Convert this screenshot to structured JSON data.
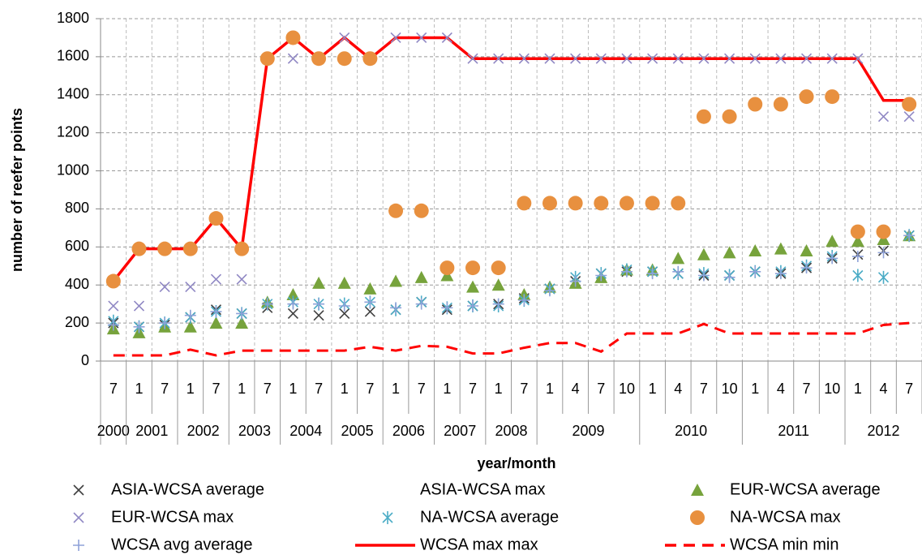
{
  "chart_data": {
    "type": "line",
    "x_label": "year/month",
    "y_label": "number of reefer points",
    "categories": [
      "7",
      "1",
      "7",
      "1",
      "7",
      "1",
      "7",
      "1",
      "7",
      "1",
      "7",
      "1",
      "7",
      "1",
      "7",
      "1",
      "7",
      "1",
      "4",
      "7",
      "10",
      "1",
      "4",
      "7",
      "10",
      "1",
      "4",
      "7",
      "10",
      "1",
      "4",
      "7"
    ],
    "years": [
      "2000",
      "2001",
      "2001",
      "2002",
      "2002",
      "2003",
      "2003",
      "2004",
      "2004",
      "2005",
      "2005",
      "2006",
      "2006",
      "2007",
      "2007",
      "2008",
      "2008",
      "2009",
      "2009",
      "2009",
      "2009",
      "2010",
      "2010",
      "2010",
      "2010",
      "2011",
      "2011",
      "2011",
      "2011",
      "2012",
      "2012",
      "2012"
    ],
    "ylim": [
      0,
      1800
    ],
    "yticks": [
      0,
      200,
      400,
      600,
      800,
      1000,
      1200,
      1400,
      1600,
      1800
    ],
    "grid": true,
    "series": [
      {
        "name": "ASIA-WCSA average",
        "color": "#404040",
        "marker": "x",
        "values": [
          200,
          180,
          190,
          230,
          270,
          250,
          280,
          250,
          240,
          250,
          260,
          270,
          310,
          270,
          290,
          300,
          330,
          380,
          420,
          460,
          470,
          470,
          460,
          450,
          450,
          470,
          460,
          490,
          540,
          560,
          580,
          660
        ]
      },
      {
        "name": "ASIA-WCSA max",
        "color": "#ffffff",
        "marker": "none",
        "values": [
          null,
          null,
          null,
          null,
          null,
          null,
          null,
          null,
          null,
          null,
          null,
          null,
          null,
          null,
          null,
          null,
          null,
          null,
          null,
          null,
          null,
          null,
          null,
          null,
          null,
          null,
          null,
          null,
          null,
          null,
          null,
          null
        ]
      },
      {
        "name": "EUR-WCSA average",
        "color": "#77a33c",
        "marker": "triangle",
        "values": [
          170,
          150,
          180,
          180,
          200,
          200,
          310,
          350,
          410,
          410,
          380,
          420,
          440,
          450,
          390,
          400,
          350,
          390,
          410,
          440,
          480,
          480,
          540,
          560,
          570,
          580,
          590,
          580,
          630,
          630,
          640,
          660
        ]
      },
      {
        "name": "EUR-WCSA max",
        "color": "#9088c4",
        "marker": "x",
        "values": [
          290,
          290,
          390,
          390,
          430,
          430,
          1590,
          1590,
          1590,
          1700,
          1590,
          1700,
          1700,
          1700,
          1590,
          1590,
          1590,
          1590,
          1590,
          1590,
          1590,
          1590,
          1590,
          1590,
          1590,
          1590,
          1590,
          1590,
          1590,
          1590,
          1285,
          1285
        ]
      },
      {
        "name": "NA-WCSA average",
        "color": "#4bacc6",
        "marker": "asterisk",
        "values": [
          210,
          180,
          200,
          230,
          260,
          250,
          300,
          310,
          300,
          300,
          310,
          270,
          310,
          280,
          290,
          290,
          320,
          380,
          440,
          460,
          480,
          470,
          460,
          460,
          450,
          470,
          470,
          500,
          550,
          450,
          440,
          660
        ]
      },
      {
        "name": "NA-WCSA max",
        "color": "#e8903f",
        "marker": "circle",
        "values": [
          420,
          590,
          590,
          590,
          750,
          590,
          1590,
          1700,
          1590,
          1590,
          1590,
          790,
          790,
          490,
          490,
          490,
          830,
          830,
          830,
          830,
          830,
          830,
          830,
          1285,
          1285,
          1350,
          1350,
          1390,
          1390,
          680,
          680,
          1350
        ]
      },
      {
        "name": "WCSA avg average",
        "color": "#8fa2d8",
        "marker": "plus",
        "values": [
          190,
          180,
          200,
          240,
          260,
          250,
          300,
          300,
          300,
          290,
          310,
          280,
          300,
          280,
          290,
          300,
          320,
          370,
          420,
          450,
          470,
          460,
          470,
          450,
          440,
          470,
          460,
          490,
          540,
          550,
          570,
          660
        ]
      },
      {
        "name": "WCSA max max",
        "color": "#ff0000",
        "marker": "line",
        "values": [
          420,
          590,
          590,
          590,
          750,
          590,
          1590,
          1700,
          1590,
          1700,
          1590,
          1700,
          1700,
          1700,
          1590,
          1590,
          1590,
          1590,
          1590,
          1590,
          1590,
          1590,
          1590,
          1590,
          1590,
          1590,
          1590,
          1590,
          1590,
          1590,
          1370,
          1370
        ]
      },
      {
        "name": "WCSA min min",
        "color": "#ff0000",
        "marker": "dashed",
        "values": [
          30,
          30,
          30,
          60,
          30,
          55,
          55,
          55,
          55,
          55,
          75,
          55,
          80,
          75,
          40,
          40,
          70,
          95,
          95,
          50,
          145,
          145,
          145,
          195,
          145,
          145,
          145,
          145,
          145,
          145,
          190,
          200
        ]
      }
    ]
  }
}
